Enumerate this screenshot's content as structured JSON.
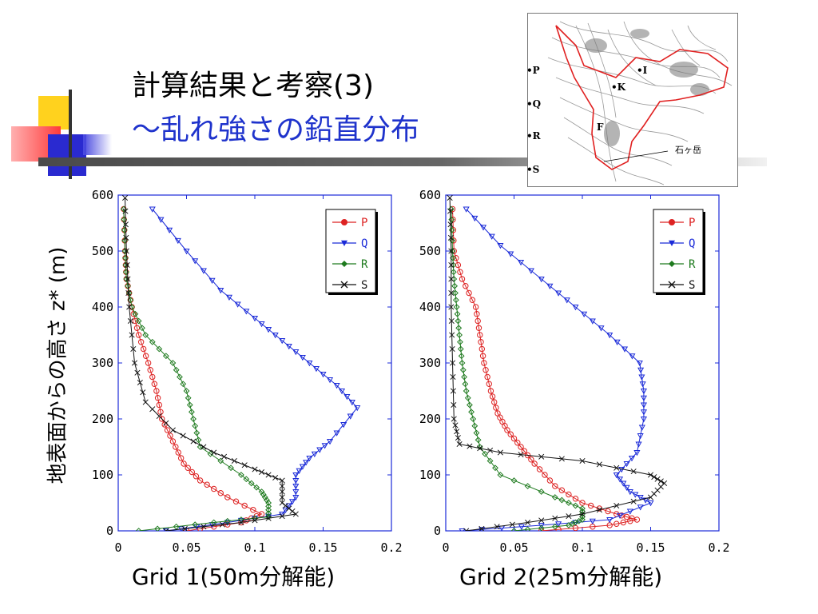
{
  "slide": {
    "title_line1": "計算結果と考察(3)",
    "title_line2": "〜乱れ強さの鉛直分布",
    "y_axis_label": "地表面からの高さ z* (m)"
  },
  "inset_map": {
    "point_labels": [
      "•P",
      "•Q",
      "•R",
      "•S",
      "•I",
      "•K",
      "F"
    ],
    "peak_label": "石ヶ岳"
  },
  "colors": {
    "P": "#dd2222",
    "Q": "#1a2ad8",
    "R": "#1e7a1e",
    "S": "#111111",
    "title_accent": "#1f33cc"
  },
  "chart_data": [
    {
      "type": "line",
      "caption": "Grid 1(50m分解能)",
      "xlim": [
        0,
        0.2
      ],
      "ylim": [
        0,
        600
      ],
      "xticks": [
        "0",
        "0.05",
        "0.1",
        "0.15",
        "0.2"
      ],
      "yticks": [
        "0",
        "100",
        "200",
        "300",
        "400",
        "500",
        "600"
      ],
      "legend": "top-right",
      "series": [
        {
          "name": "P",
          "marker": "circle",
          "points": [
            [
              0.05,
              0
            ],
            [
              0.09,
              15
            ],
            [
              0.105,
              30
            ],
            [
              0.08,
              60
            ],
            [
              0.06,
              90
            ],
            [
              0.048,
              120
            ],
            [
              0.04,
              160
            ],
            [
              0.032,
              200
            ],
            [
              0.028,
              250
            ],
            [
              0.022,
              300
            ],
            [
              0.015,
              350
            ],
            [
              0.01,
              400
            ],
            [
              0.006,
              450
            ],
            [
              0.005,
              500
            ],
            [
              0.004,
              575
            ]
          ]
        },
        {
          "name": "Q",
          "marker": "tri-down",
          "points": [
            [
              0.035,
              0
            ],
            [
              0.08,
              15
            ],
            [
              0.12,
              30
            ],
            [
              0.13,
              60
            ],
            [
              0.13,
              100
            ],
            [
              0.14,
              130
            ],
            [
              0.155,
              160
            ],
            [
              0.175,
              220
            ],
            [
              0.16,
              260
            ],
            [
              0.14,
              300
            ],
            [
              0.12,
              340
            ],
            [
              0.1,
              380
            ],
            [
              0.075,
              430
            ],
            [
              0.05,
              500
            ],
            [
              0.025,
              575
            ]
          ]
        },
        {
          "name": "R",
          "marker": "diamond",
          "points": [
            [
              0.015,
              0
            ],
            [
              0.07,
              15
            ],
            [
              0.11,
              25
            ],
            [
              0.11,
              50
            ],
            [
              0.105,
              70
            ],
            [
              0.09,
              100
            ],
            [
              0.06,
              150
            ],
            [
              0.055,
              200
            ],
            [
              0.05,
              250
            ],
            [
              0.04,
              300
            ],
            [
              0.02,
              350
            ],
            [
              0.01,
              400
            ],
            [
              0.006,
              450
            ],
            [
              0.005,
              500
            ],
            [
              0.004,
              575
            ]
          ]
        },
        {
          "name": "S",
          "marker": "cross",
          "points": [
            [
              0.035,
              0
            ],
            [
              0.09,
              15
            ],
            [
              0.13,
              30
            ],
            [
              0.12,
              50
            ],
            [
              0.12,
              90
            ],
            [
              0.1,
              110
            ],
            [
              0.07,
              140
            ],
            [
              0.04,
              180
            ],
            [
              0.02,
              230
            ],
            [
              0.012,
              300
            ],
            [
              0.008,
              400
            ],
            [
              0.006,
              500
            ],
            [
              0.005,
              595
            ]
          ]
        }
      ]
    },
    {
      "type": "line",
      "caption": "Grid 2(25m分解能)",
      "xlim": [
        0,
        0.2
      ],
      "ylim": [
        0,
        600
      ],
      "xticks": [
        "0",
        "0.05",
        "0.1",
        "0.15",
        "0.2"
      ],
      "yticks": [
        "0",
        "100",
        "200",
        "300",
        "400",
        "500",
        "600"
      ],
      "legend": "top-right",
      "series": [
        {
          "name": "P",
          "marker": "circle",
          "points": [
            [
              0.07,
              0
            ],
            [
              0.12,
              10
            ],
            [
              0.14,
              20
            ],
            [
              0.125,
              30
            ],
            [
              0.1,
              50
            ],
            [
              0.08,
              80
            ],
            [
              0.065,
              120
            ],
            [
              0.055,
              150
            ],
            [
              0.045,
              180
            ],
            [
              0.038,
              210
            ],
            [
              0.033,
              250
            ],
            [
              0.028,
              300
            ],
            [
              0.025,
              350
            ],
            [
              0.022,
              400
            ],
            [
              0.012,
              450
            ],
            [
              0.006,
              500
            ],
            [
              0.005,
              575
            ]
          ]
        },
        {
          "name": "Q",
          "marker": "tri-down",
          "points": [
            [
              0.012,
              0
            ],
            [
              0.07,
              10
            ],
            [
              0.12,
              20
            ],
            [
              0.15,
              50
            ],
            [
              0.135,
              70
            ],
            [
              0.125,
              100
            ],
            [
              0.14,
              140
            ],
            [
              0.145,
              200
            ],
            [
              0.145,
              250
            ],
            [
              0.142,
              300
            ],
            [
              0.12,
              350
            ],
            [
              0.095,
              400
            ],
            [
              0.07,
              450
            ],
            [
              0.04,
              510
            ],
            [
              0.015,
              575
            ]
          ]
        },
        {
          "name": "R",
          "marker": "diamond",
          "points": [
            [
              0.05,
              0
            ],
            [
              0.09,
              10
            ],
            [
              0.1,
              20
            ],
            [
              0.1,
              40
            ],
            [
              0.08,
              60
            ],
            [
              0.04,
              100
            ],
            [
              0.025,
              150
            ],
            [
              0.02,
              200
            ],
            [
              0.015,
              250
            ],
            [
              0.012,
              300
            ],
            [
              0.01,
              350
            ],
            [
              0.008,
              400
            ],
            [
              0.006,
              450
            ],
            [
              0.005,
              500
            ],
            [
              0.004,
              575
            ]
          ]
        },
        {
          "name": "S",
          "marker": "cross",
          "points": [
            [
              0.015,
              0
            ],
            [
              0.06,
              15
            ],
            [
              0.1,
              30
            ],
            [
              0.15,
              60
            ],
            [
              0.16,
              85
            ],
            [
              0.15,
              100
            ],
            [
              0.1,
              125
            ],
            [
              0.04,
              140
            ],
            [
              0.01,
              155
            ],
            [
              0.006,
              200
            ],
            [
              0.005,
              300
            ],
            [
              0.004,
              400
            ],
            [
              0.004,
              500
            ],
            [
              0.003,
              595
            ]
          ]
        }
      ]
    }
  ]
}
